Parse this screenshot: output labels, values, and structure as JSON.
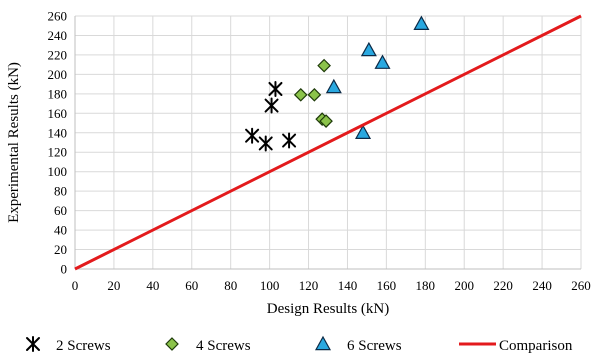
{
  "chart_data": {
    "type": "scatter",
    "xlabel": "Design Results (kN)",
    "ylabel": "Experimental Results (kN)",
    "xlim": [
      0,
      260
    ],
    "ylim": [
      0,
      260
    ],
    "x_ticks": [
      "0",
      "20",
      "40",
      "60",
      "80",
      "100",
      "120",
      "140",
      "160",
      "180",
      "200",
      "220",
      "240",
      "260"
    ],
    "y_ticks": [
      "0",
      "20",
      "40",
      "60",
      "80",
      "100",
      "120",
      "140",
      "160",
      "180",
      "200",
      "220",
      "240",
      "260"
    ],
    "grid": "horizontal",
    "legend_position": "bottom",
    "series": [
      {
        "name": "2 Screws",
        "marker": "asterisk",
        "color": "#000000",
        "points": [
          [
            91,
            137
          ],
          [
            98,
            129
          ],
          [
            101,
            168
          ],
          [
            103,
            185
          ],
          [
            110,
            132
          ]
        ]
      },
      {
        "name": "4 Screws",
        "marker": "diamond",
        "color": "#8BC34A",
        "points": [
          [
            116,
            179
          ],
          [
            123,
            179
          ],
          [
            127,
            154
          ],
          [
            128,
            209
          ],
          [
            129,
            152
          ]
        ]
      },
      {
        "name": "6 Screws",
        "marker": "triangle",
        "color": "#29A8E0",
        "points": [
          [
            133,
            187
          ],
          [
            148,
            140
          ],
          [
            151,
            225
          ],
          [
            158,
            212
          ],
          [
            178,
            252
          ]
        ]
      },
      {
        "name": "Comparison",
        "marker": "line",
        "color": "#E31A1C",
        "points": [
          [
            0,
            0
          ],
          [
            260,
            260
          ]
        ]
      }
    ]
  }
}
